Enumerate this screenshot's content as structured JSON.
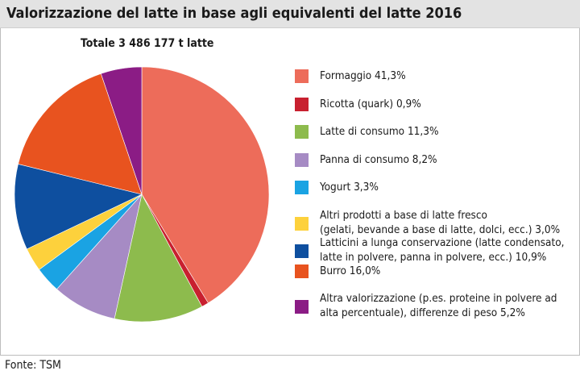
{
  "header": {
    "title": "Valorizzazione del latte in base agli equivalenti del latte 2016"
  },
  "chart_data": {
    "type": "pie",
    "title": "Valorizzazione del latte in base agli equivalenti del latte 2016",
    "subtitle": "Totale 3 486 177 t latte",
    "slices": [
      {
        "label": "Formaggio 41,3%",
        "value": 41.3,
        "color": "#ED6C5A"
      },
      {
        "label": "Ricotta (quark) 0,9%",
        "value": 0.9,
        "color": "#C8202F"
      },
      {
        "label": "Latte di consumo 11,3%",
        "value": 11.3,
        "color": "#8DBB4D"
      },
      {
        "label": "Panna di consumo 8,2%",
        "value": 8.2,
        "color": "#A68BC4"
      },
      {
        "label": "Yogurt 3,3%",
        "value": 3.3,
        "color": "#1AA3E3"
      },
      {
        "label": "Altri prodotti a base di latte fresco\n(gelati, bevande a base di latte, dolci, ecc.) 3,0%",
        "value": 3.0,
        "color": "#FDD13C"
      },
      {
        "label": "Latticini a lunga conservazione (latte condensato,\nlatte in polvere, panna in polvere, ecc.) 10,9%",
        "value": 10.9,
        "color": "#0E4F9F"
      },
      {
        "label": "Burro 16,0%",
        "value": 16.0,
        "color": "#E8531F"
      },
      {
        "label": "Altra valorizzazione (p.es. proteine in polvere ad\nalta percentuale), differenze di peso 5,2%",
        "value": 5.2,
        "color": "#8B1C85"
      }
    ]
  },
  "footer": {
    "source": "Fonte: TSM"
  }
}
